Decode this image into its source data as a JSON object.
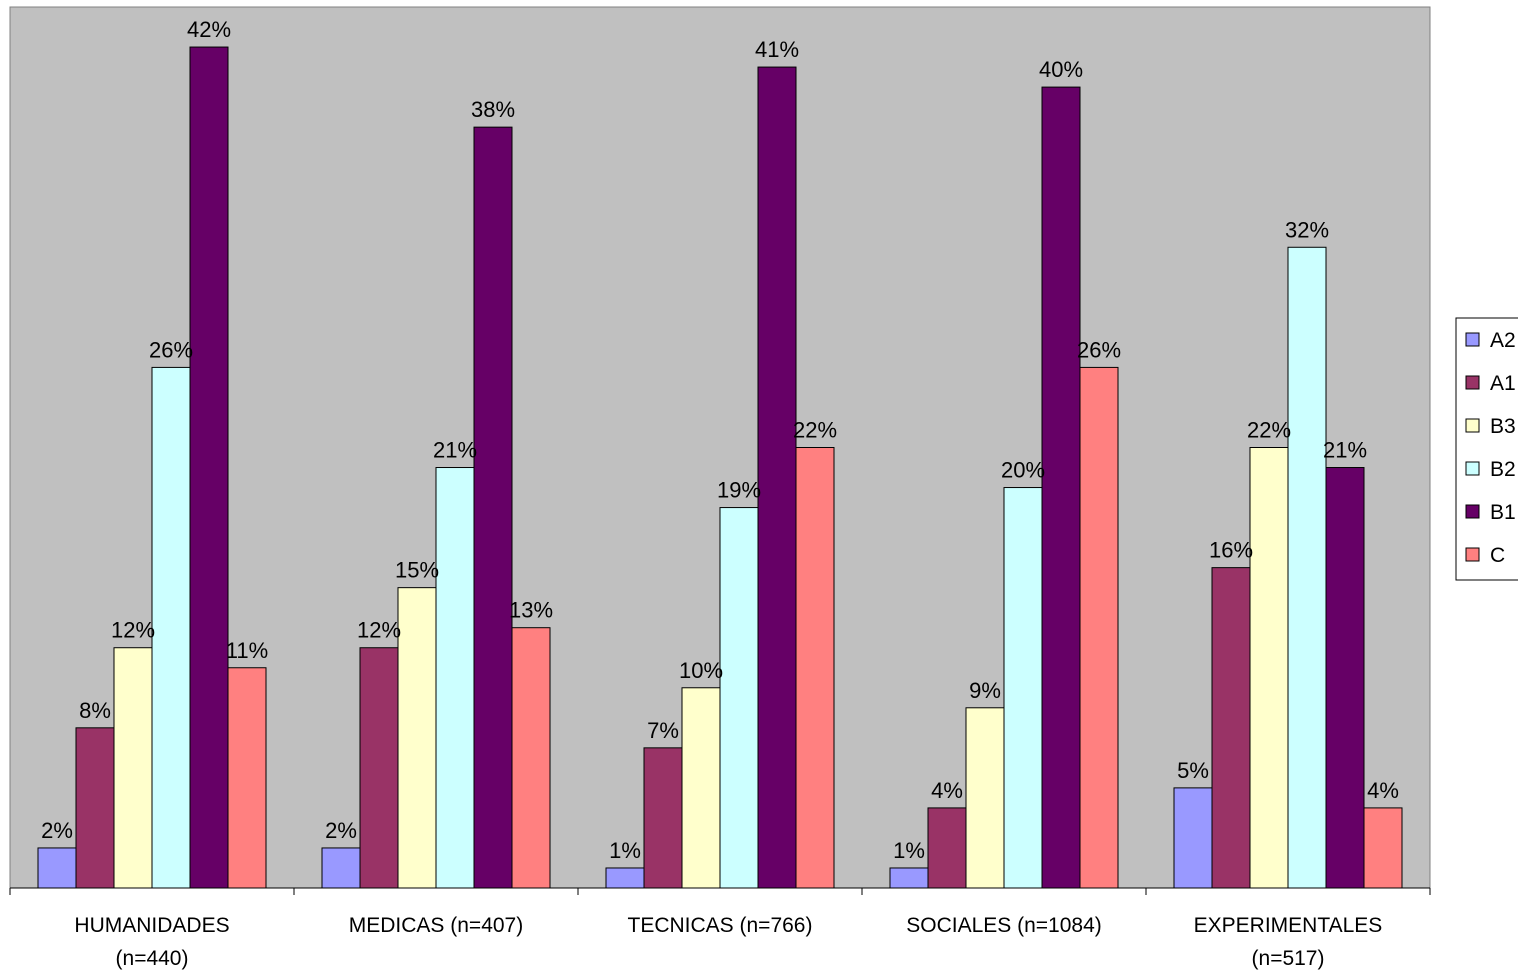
{
  "chart_data": {
    "type": "bar",
    "categories": [
      [
        "HUMANIDADES",
        "(n=440)"
      ],
      [
        "MEDICAS (n=407)"
      ],
      [
        "TECNICAS (n=766)"
      ],
      [
        "SOCIALES (n=1084)"
      ],
      [
        "EXPERIMENTALES",
        "(n=517)"
      ]
    ],
    "series": [
      {
        "name": "A2",
        "color": "#9999ff",
        "values": [
          2,
          2,
          1,
          1,
          5
        ]
      },
      {
        "name": "A1",
        "color": "#993366",
        "values": [
          8,
          12,
          7,
          4,
          16
        ]
      },
      {
        "name": "B3",
        "color": "#ffffcc",
        "values": [
          12,
          15,
          10,
          9,
          22
        ]
      },
      {
        "name": "B2",
        "color": "#ccffff",
        "values": [
          26,
          21,
          19,
          20,
          32
        ]
      },
      {
        "name": "B1",
        "color": "#660066",
        "values": [
          42,
          38,
          41,
          40,
          21
        ]
      },
      {
        "name": "C",
        "color": "#ff8080",
        "values": [
          11,
          13,
          22,
          26,
          4
        ]
      }
    ],
    "value_suffix": "%",
    "plot_background": "#c0c0c0",
    "ylim": [
      0,
      44
    ],
    "grid": false,
    "legend_position": "right"
  }
}
